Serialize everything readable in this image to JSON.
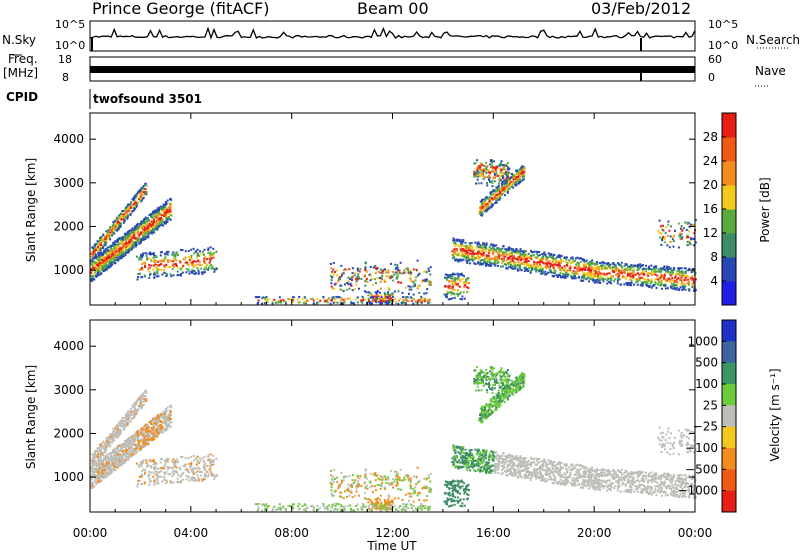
{
  "header": {
    "station": "Prince George (fitACF)",
    "beam": "Beam 00",
    "date": "03/Feb/2012"
  },
  "labels": {
    "n_sky": "N.Sky",
    "n_search": "N.Search",
    "freq": "Freq.",
    "freq_unit": "[MHz]",
    "nave": "Nave",
    "cpid": "CPID",
    "cpid_value": "twofsound 3501"
  },
  "colors": {
    "red": "#e61e14",
    "orange": "#f28c1e",
    "yellow": "#f5c81e",
    "green": "#5ab43c",
    "dkgreen": "#3c8c64",
    "blue": "#2846b4",
    "gray": "#bebeb9",
    "velgreen": "#6ecb3c"
  },
  "chart_data": [
    {
      "type": "line",
      "name": "noise",
      "left_ticks": [
        "10^5",
        "10^0"
      ],
      "right_ticks": [
        "10^5",
        "10^0"
      ]
    },
    {
      "type": "line",
      "name": "frequency",
      "left_ticks": [
        "18",
        "8"
      ],
      "right_ticks": [
        "60",
        "0"
      ]
    },
    {
      "type": "heatmap",
      "name": "power",
      "ylabel": "Slant Range [km]",
      "yticks": [
        1000,
        2000,
        3000,
        4000
      ],
      "ylim": [
        200,
        4600
      ],
      "colorbar_label": "Power [dB]",
      "colorbar_ticks": [
        "4",
        "8",
        "12",
        "16",
        "20",
        "24",
        "28"
      ],
      "colorbar_colors": [
        "#1e1ee6",
        "#2846b4",
        "#3c8c64",
        "#5aaa3c",
        "#f5c81e",
        "#f28c1e",
        "#f05a14",
        "#e61e14"
      ]
    },
    {
      "type": "heatmap",
      "name": "velocity",
      "ylabel": "Slant Range [km]",
      "yticks": [
        1000,
        2000,
        3000,
        4000
      ],
      "ylim": [
        200,
        4600
      ],
      "xlabel": "Time UT",
      "xticks": [
        "00:00",
        "04:00",
        "08:00",
        "12:00",
        "16:00",
        "20:00",
        "00:00"
      ],
      "colorbar_label": "Velocity [m s⁻¹]",
      "colorbar_ticks": [
        "1000",
        "500",
        "100",
        "25",
        "−25",
        "−100",
        "−500",
        "−1000"
      ],
      "colorbar_colors": [
        "#1e32c8",
        "#3c64a0",
        "#3c9664",
        "#6ecb3c",
        "#bebeb9",
        "#f5c81e",
        "#f28c1e",
        "#f05a14",
        "#e61e14"
      ]
    }
  ]
}
